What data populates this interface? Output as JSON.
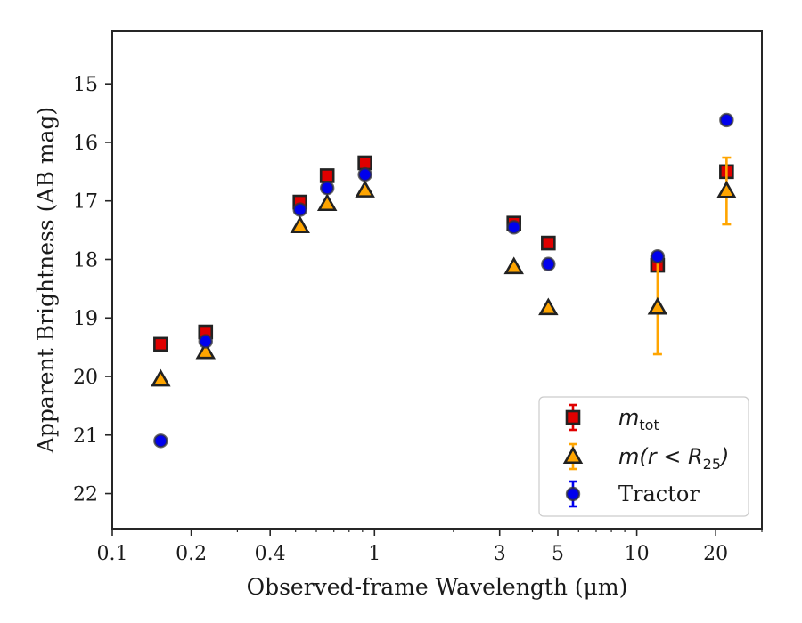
{
  "chart_data": {
    "type": "scatter",
    "xlabel": "Observed-frame Wavelength (μm)",
    "ylabel": "Apparent Brightness (AB mag)",
    "xscale": "log",
    "xlim": [
      0.1,
      30
    ],
    "ylim": [
      22.6,
      14.1
    ],
    "y_inverted": true,
    "x_tick_labels": [
      {
        "value": 0.1,
        "label": "0.1"
      },
      {
        "value": 0.2,
        "label": "0.2"
      },
      {
        "value": 0.4,
        "label": "0.4"
      },
      {
        "value": 1,
        "label": "1"
      },
      {
        "value": 3,
        "label": "3"
      },
      {
        "value": 5,
        "label": "5"
      },
      {
        "value": 10,
        "label": "10"
      },
      {
        "value": 20,
        "label": "20"
      }
    ],
    "y_tick_labels": [
      15,
      16,
      17,
      18,
      19,
      20,
      21,
      22
    ],
    "grid": false,
    "legend_position": "lower-right",
    "series": [
      {
        "name_parts": [
          "m",
          "tot"
        ],
        "marker": "square",
        "color": "#e00000",
        "errorbar_color": "#e00000",
        "points": [
          {
            "x": 0.153,
            "y": 19.45,
            "err": 0.0
          },
          {
            "x": 0.227,
            "y": 19.24,
            "err": 0.0
          },
          {
            "x": 0.52,
            "y": 17.02,
            "err": 0.05
          },
          {
            "x": 0.66,
            "y": 16.57,
            "err": 0.05
          },
          {
            "x": 0.92,
            "y": 16.35,
            "err": 0.05
          },
          {
            "x": 3.4,
            "y": 17.38,
            "err": 0.05
          },
          {
            "x": 4.6,
            "y": 17.72,
            "err": 0.05
          },
          {
            "x": 12.0,
            "y": 18.1,
            "err": 0.05
          },
          {
            "x": 22.0,
            "y": 16.5,
            "err": 0.05
          }
        ]
      },
      {
        "name_parts": [
          "m(r < R",
          "25",
          ")"
        ],
        "marker": "triangle",
        "color": "#ffa500",
        "errorbar_color": "#ffa500",
        "points": [
          {
            "x": 0.153,
            "y": 20.05,
            "err": 0.0
          },
          {
            "x": 0.227,
            "y": 19.58,
            "err": 0.0
          },
          {
            "x": 0.52,
            "y": 17.43,
            "err": 0.0
          },
          {
            "x": 0.66,
            "y": 17.05,
            "err": 0.0
          },
          {
            "x": 0.92,
            "y": 16.82,
            "err": 0.0
          },
          {
            "x": 3.4,
            "y": 18.13,
            "err": 0.0
          },
          {
            "x": 4.6,
            "y": 18.83,
            "err": 0.0
          },
          {
            "x": 12.0,
            "y": 18.82,
            "err": 0.8
          },
          {
            "x": 22.0,
            "y": 16.83,
            "err": 0.57
          }
        ]
      },
      {
        "name": "Tractor",
        "marker": "circle",
        "color": "#0000ee",
        "errorbar_color": "#0000ee",
        "points": [
          {
            "x": 0.153,
            "y": 21.1,
            "err": 0.0
          },
          {
            "x": 0.227,
            "y": 19.4,
            "err": 0.0
          },
          {
            "x": 0.52,
            "y": 17.15,
            "err": 0.0
          },
          {
            "x": 0.66,
            "y": 16.78,
            "err": 0.0
          },
          {
            "x": 0.92,
            "y": 16.55,
            "err": 0.0
          },
          {
            "x": 3.4,
            "y": 17.45,
            "err": 0.0
          },
          {
            "x": 4.6,
            "y": 18.08,
            "err": 0.0
          },
          {
            "x": 12.0,
            "y": 17.95,
            "err": 0.0
          },
          {
            "x": 22.0,
            "y": 15.62,
            "err": 0.0
          }
        ]
      }
    ]
  }
}
